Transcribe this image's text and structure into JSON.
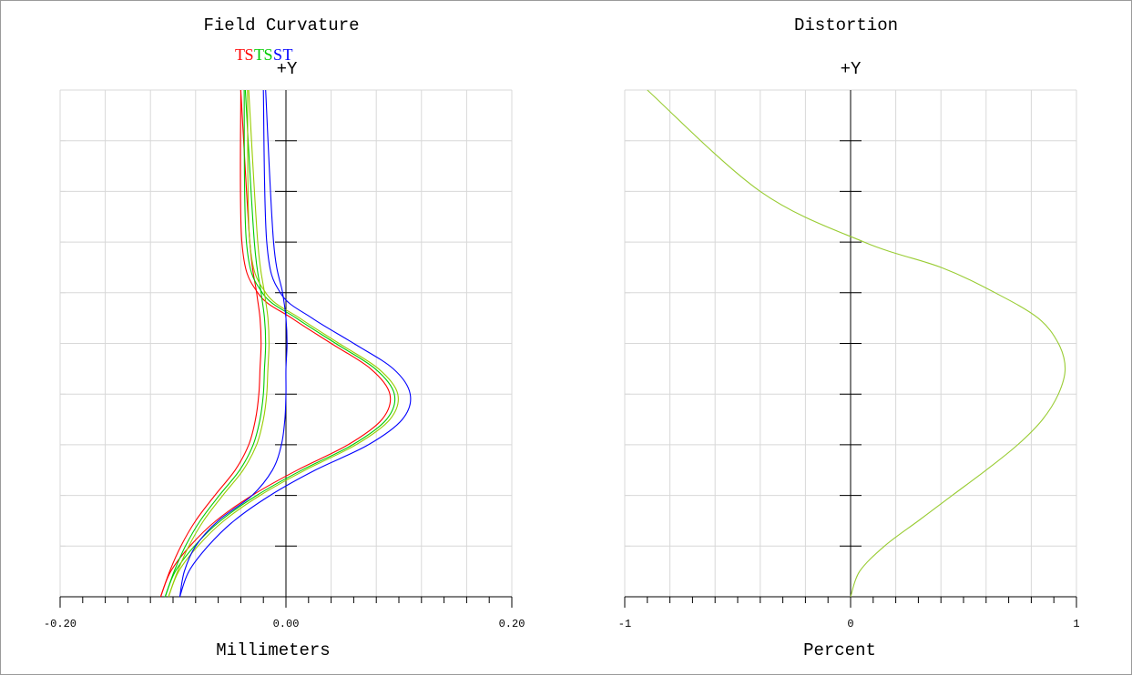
{
  "chart_data": [
    {
      "type": "line",
      "title": "Field Curvature",
      "xlabel": "Millimeters",
      "ylabel": "+Y",
      "xlim": [
        -0.2,
        0.2
      ],
      "ylim": [
        0,
        1
      ],
      "grid": true,
      "x_ticks": [
        {
          "value": -0.2,
          "label": "-0.20"
        },
        {
          "value": 0.0,
          "label": "0.00"
        },
        {
          "value": 0.2,
          "label": "0.20"
        }
      ],
      "legend": [
        {
          "label": "T",
          "color": "#ff0000"
        },
        {
          "label": "S",
          "color": "#ff0000"
        },
        {
          "label": "T",
          "color": "#00cc00"
        },
        {
          "label": "S",
          "color": "#00cc00"
        },
        {
          "label": "S",
          "color": "#0000ff"
        },
        {
          "label": "T",
          "color": "#0000ff"
        }
      ],
      "series": [
        {
          "color": "#ff0000",
          "x": [
            -0.111,
            -0.102,
            -0.085,
            -0.062,
            -0.03,
            0.01,
            0.055,
            0.085,
            0.092,
            0.075,
            0.04,
            0.005,
            -0.025,
            -0.039,
            -0.04
          ],
          "y": [
            0,
            0.05,
            0.1,
            0.15,
            0.2,
            0.25,
            0.3,
            0.35,
            0.4,
            0.45,
            0.5,
            0.55,
            0.6,
            0.7,
            1.0
          ]
        },
        {
          "color": "#ff0000",
          "x": [
            -0.111,
            -0.103,
            -0.093,
            -0.08,
            -0.063,
            -0.045,
            -0.033,
            -0.027,
            -0.024,
            -0.023,
            -0.022,
            -0.023,
            -0.026,
            -0.032,
            -0.04
          ],
          "y": [
            0,
            0.05,
            0.1,
            0.15,
            0.2,
            0.25,
            0.3,
            0.35,
            0.4,
            0.45,
            0.5,
            0.55,
            0.6,
            0.7,
            1.0
          ]
        },
        {
          "color": "#00cc00",
          "x": [
            -0.107,
            -0.098,
            -0.081,
            -0.058,
            -0.026,
            0.014,
            0.059,
            0.089,
            0.096,
            0.079,
            0.044,
            0.009,
            -0.021,
            -0.035,
            -0.037
          ],
          "y": [
            0,
            0.05,
            0.1,
            0.15,
            0.2,
            0.25,
            0.3,
            0.35,
            0.4,
            0.45,
            0.5,
            0.55,
            0.6,
            0.7,
            1.0
          ]
        },
        {
          "color": "#00cc00",
          "x": [
            -0.107,
            -0.099,
            -0.089,
            -0.076,
            -0.059,
            -0.041,
            -0.029,
            -0.023,
            -0.02,
            -0.019,
            -0.018,
            -0.019,
            -0.022,
            -0.028,
            -0.036
          ],
          "y": [
            0,
            0.05,
            0.1,
            0.15,
            0.2,
            0.25,
            0.3,
            0.35,
            0.4,
            0.45,
            0.5,
            0.55,
            0.6,
            0.7,
            1.0
          ]
        },
        {
          "color": "#99cc00",
          "x": [
            -0.104,
            -0.095,
            -0.078,
            -0.055,
            -0.023,
            0.017,
            0.062,
            0.092,
            0.099,
            0.082,
            0.047,
            0.012,
            -0.018,
            -0.032,
            -0.034
          ],
          "y": [
            0,
            0.05,
            0.1,
            0.15,
            0.2,
            0.25,
            0.3,
            0.35,
            0.4,
            0.45,
            0.5,
            0.55,
            0.6,
            0.7,
            1.0
          ]
        },
        {
          "color": "#99cc00",
          "x": [
            -0.104,
            -0.096,
            -0.086,
            -0.073,
            -0.056,
            -0.038,
            -0.026,
            -0.02,
            -0.017,
            -0.016,
            -0.015,
            -0.016,
            -0.019,
            -0.025,
            -0.033
          ],
          "y": [
            0,
            0.05,
            0.1,
            0.15,
            0.2,
            0.25,
            0.3,
            0.35,
            0.4,
            0.45,
            0.5,
            0.55,
            0.6,
            0.7,
            1.0
          ]
        },
        {
          "color": "#0000ff",
          "x": [
            -0.094,
            -0.086,
            -0.069,
            -0.046,
            -0.014,
            0.026,
            0.073,
            0.103,
            0.11,
            0.095,
            0.06,
            0.023,
            -0.005,
            -0.017,
            -0.02
          ],
          "y": [
            0,
            0.05,
            0.1,
            0.15,
            0.2,
            0.25,
            0.3,
            0.35,
            0.4,
            0.45,
            0.5,
            0.55,
            0.6,
            0.7,
            1.0
          ]
        },
        {
          "color": "#0000ff",
          "x": [
            -0.094,
            -0.09,
            -0.08,
            -0.06,
            -0.03,
            -0.012,
            -0.004,
            -0.001,
            0.0,
            0.0,
            0.001,
            0.0,
            -0.003,
            -0.011,
            -0.018
          ],
          "y": [
            0,
            0.05,
            0.1,
            0.15,
            0.2,
            0.25,
            0.3,
            0.35,
            0.4,
            0.45,
            0.5,
            0.55,
            0.6,
            0.7,
            1.0
          ]
        }
      ]
    },
    {
      "type": "line",
      "title": "Distortion",
      "xlabel": "Percent",
      "ylabel": "+Y",
      "xlim": [
        -1,
        1
      ],
      "ylim": [
        0,
        1
      ],
      "grid": true,
      "x_ticks": [
        {
          "value": -1,
          "label": "-1"
        },
        {
          "value": 0,
          "label": "0"
        },
        {
          "value": 1,
          "label": "1"
        }
      ],
      "series": [
        {
          "color": "#99cc33",
          "x": [
            0.0,
            0.04,
            0.15,
            0.3,
            0.45,
            0.6,
            0.74,
            0.85,
            0.92,
            0.95,
            0.92,
            0.83,
            0.64,
            0.4,
            0.06,
            -0.4,
            -0.9
          ],
          "y": [
            0,
            0.05,
            0.1,
            0.15,
            0.2,
            0.25,
            0.3,
            0.35,
            0.4,
            0.45,
            0.5,
            0.55,
            0.6,
            0.65,
            0.7,
            0.8,
            1.0
          ]
        }
      ]
    }
  ]
}
